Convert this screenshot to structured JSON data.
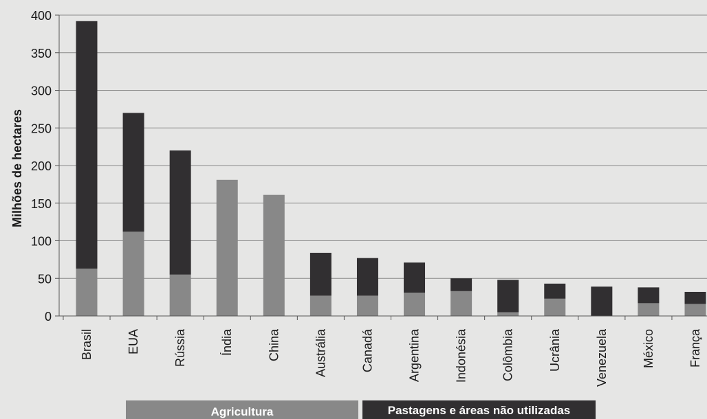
{
  "chart_data": {
    "type": "bar",
    "stacked": true,
    "ylabel": "Milhões de hectares",
    "xlabel": "",
    "ylim": [
      0,
      400
    ],
    "yticks": [
      "0",
      "50",
      "100",
      "150",
      "200",
      "250",
      "300",
      "350",
      "400"
    ],
    "grid": true,
    "legend_position": "bottom",
    "categories": [
      "Brasil",
      "EUA",
      "Rússia",
      "Índia",
      "China",
      "Austrália",
      "Canadá",
      "Argentina",
      "Indonésia",
      "Colômbia",
      "Ucrânia",
      "Venezuela",
      "México",
      "França"
    ],
    "series": [
      {
        "name": "Agricultura",
        "color": "#888888",
        "values": [
          63,
          112,
          55,
          181,
          161,
          27,
          27,
          31,
          33,
          5,
          23,
          0,
          17,
          16
        ]
      },
      {
        "name": "Pastagens e áreas não utilizadas",
        "color": "#312f31",
        "values": [
          329,
          158,
          165,
          0,
          0,
          57,
          50,
          40,
          17,
          43,
          20,
          39,
          21,
          16
        ]
      }
    ]
  },
  "colors": {
    "background": "#e6e6e5",
    "grid": "#8a8a8a",
    "axis": "#555555",
    "text": "#1a1a1a"
  }
}
